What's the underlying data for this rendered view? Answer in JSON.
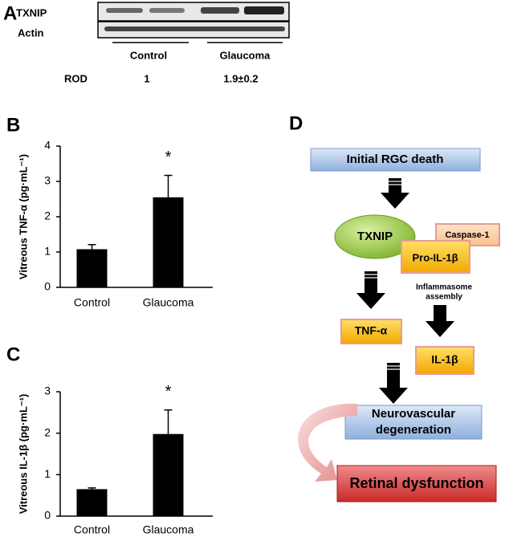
{
  "blot": {
    "panel_label": "A",
    "rows": [
      "TXNIP",
      "Actin"
    ],
    "groups": [
      "Control",
      "Glaucoma"
    ],
    "rod_label": "ROD",
    "rod_values": [
      1,
      "1.9±0.2"
    ]
  },
  "chart_data": [
    {
      "type": "bar",
      "panel_label": "B",
      "y_label": "Vitreous TNF-α (pg·mL⁻¹)",
      "categories": [
        "Control",
        "Glaucoma"
      ],
      "values": [
        1.08,
        2.55
      ],
      "errors": [
        0.13,
        0.62
      ],
      "significance": [
        null,
        "*"
      ],
      "color": "#000000",
      "ylim": [
        0,
        4
      ],
      "yticks": [
        0,
        1,
        2,
        3,
        4
      ]
    },
    {
      "type": "bar",
      "panel_label": "C",
      "y_label": "Vitreous IL-1β (pg·mL⁻¹)",
      "categories": [
        "Control",
        "Glaucoma"
      ],
      "values": [
        0.65,
        1.98
      ],
      "errors": [
        0.03,
        0.58
      ],
      "significance": [
        null,
        "*"
      ],
      "color": "#000000",
      "ylim": [
        0,
        3
      ],
      "yticks": [
        0,
        1,
        2,
        3
      ]
    }
  ],
  "diagram": {
    "panel_label": "D",
    "nodes": [
      "Initial RGC death",
      "TXNIP",
      "Caspase-1",
      "Pro-IL-1β",
      "TNF-α",
      "IL-1β",
      "Neurovascular",
      "degeneration",
      "Retinal dysfunction"
    ],
    "notes": [
      "Inflammasome",
      "assembly"
    ]
  }
}
